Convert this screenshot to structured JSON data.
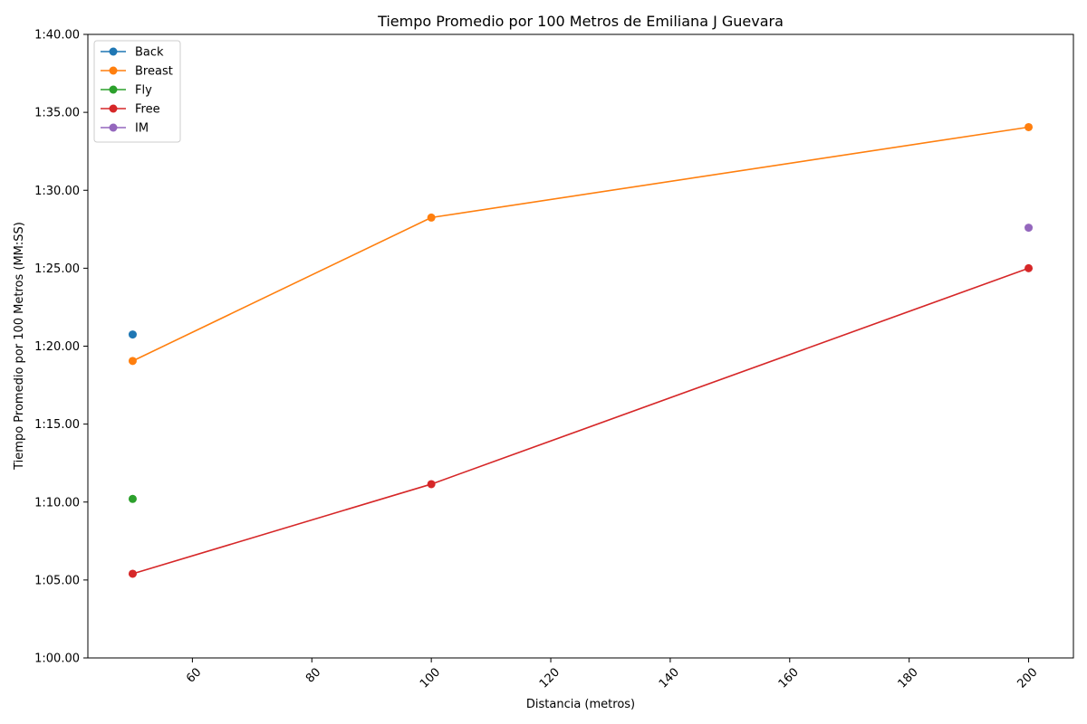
{
  "chart_data": {
    "type": "line",
    "title": "Tiempo Promedio por 100 Metros de Emiliana J Guevara",
    "xlabel": "Distancia (metros)",
    "ylabel": "Tiempo Promedio por 100 Metros (MM:SS)",
    "xlim": [
      42.5,
      207.5
    ],
    "ylim": [
      60,
      100
    ],
    "x_ticks": [
      60,
      80,
      100,
      120,
      140,
      160,
      180,
      200
    ],
    "y_ticks": [
      60,
      65,
      70,
      75,
      80,
      85,
      90,
      95,
      100
    ],
    "y_tick_labels": [
      "1:00.00",
      "1:05.00",
      "1:10.00",
      "1:15.00",
      "1:20.00",
      "1:25.00",
      "1:30.00",
      "1:35.00",
      "1:40.00"
    ],
    "x_tick_rotation": 45,
    "grid": false,
    "legend_position": "top-left",
    "series": [
      {
        "name": "Back",
        "color": "#1f77b4",
        "x": [
          50
        ],
        "y": [
          80.75
        ]
      },
      {
        "name": "Breast",
        "color": "#ff7f0e",
        "x": [
          50,
          100,
          200
        ],
        "y": [
          79.05,
          88.25,
          94.05
        ]
      },
      {
        "name": "Fly",
        "color": "#2ca02c",
        "x": [
          50
        ],
        "y": [
          70.2
        ]
      },
      {
        "name": "Free",
        "color": "#d62728",
        "x": [
          50,
          100,
          200
        ],
        "y": [
          65.4,
          71.15,
          85.0
        ]
      },
      {
        "name": "IM",
        "color": "#9467bd",
        "x": [
          200
        ],
        "y": [
          87.6
        ]
      }
    ]
  }
}
